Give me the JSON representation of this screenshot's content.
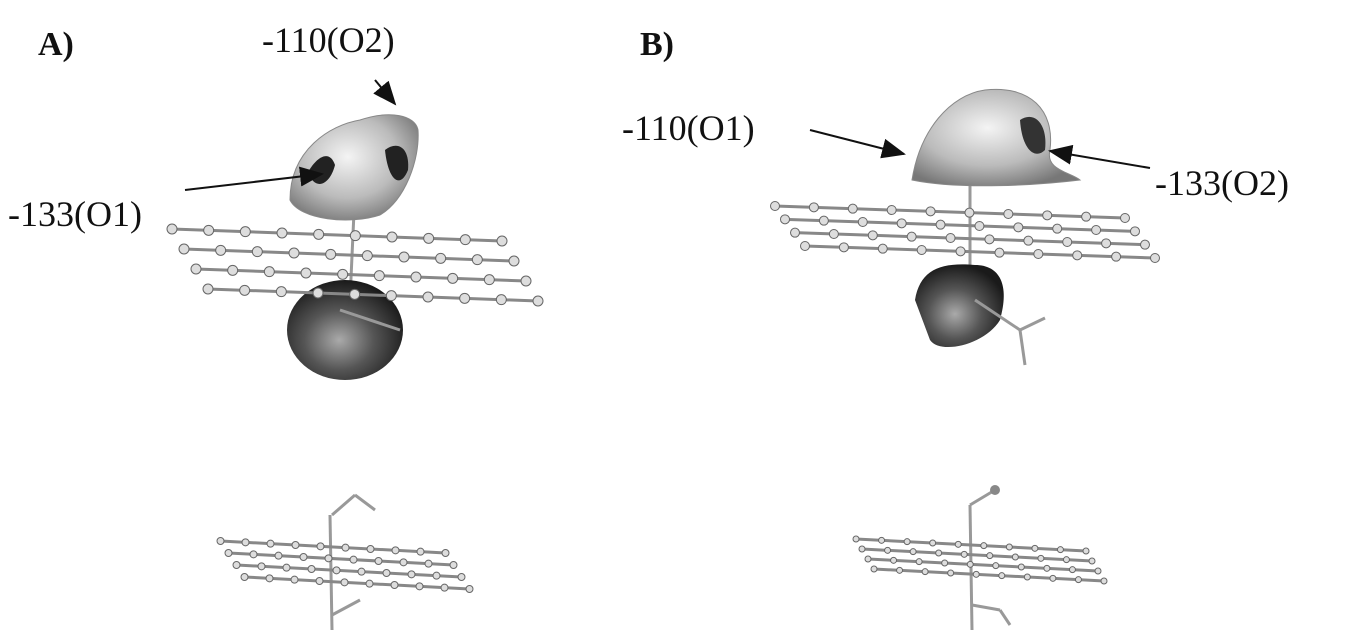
{
  "panels": [
    {
      "label": "A)",
      "annotations": [
        "-110(O2)",
        "-133(O1)"
      ]
    },
    {
      "label": "B)",
      "annotations": [
        "-110(O1)",
        "-133(O2)"
      ]
    }
  ]
}
